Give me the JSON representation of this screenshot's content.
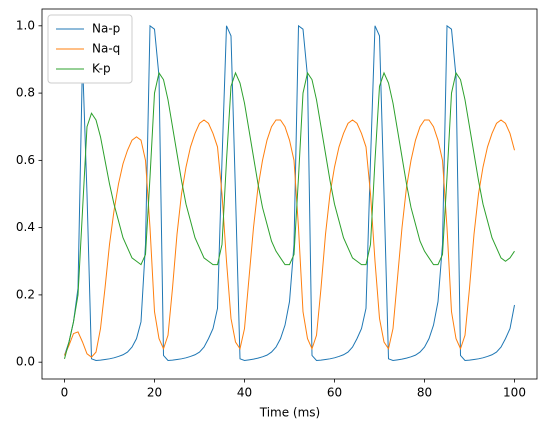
{
  "chart_data": {
    "type": "line",
    "x_label": "Time (ms)",
    "x": [
      0,
      1,
      2,
      3,
      4,
      5,
      6,
      7,
      8,
      9,
      10,
      11,
      12,
      13,
      14,
      15,
      16,
      17,
      18,
      19,
      20,
      21,
      22,
      23,
      24,
      25,
      26,
      27,
      28,
      29,
      30,
      31,
      32,
      33,
      34,
      35,
      36,
      37,
      38,
      39,
      40,
      41,
      42,
      43,
      44,
      45,
      46,
      47,
      48,
      49,
      50,
      51,
      52,
      53,
      54,
      55,
      56,
      57,
      58,
      59,
      60,
      61,
      62,
      63,
      64,
      65,
      66,
      67,
      68,
      69,
      70,
      71,
      72,
      73,
      74,
      75,
      76,
      77,
      78,
      79,
      80,
      81,
      82,
      83,
      84,
      85,
      86,
      87,
      88,
      89,
      90,
      91,
      92,
      93,
      94,
      95,
      96,
      97,
      98,
      99,
      100
    ],
    "series": [
      {
        "name": "Na-p",
        "color": "#1f77b4",
        "values": [
          0.02,
          0.06,
          0.12,
          0.22,
          0.9,
          0.5,
          0.01,
          0.005,
          0.006,
          0.008,
          0.01,
          0.013,
          0.017,
          0.022,
          0.03,
          0.045,
          0.07,
          0.12,
          0.35,
          1.0,
          0.99,
          0.85,
          0.02,
          0.005,
          0.006,
          0.008,
          0.01,
          0.013,
          0.017,
          0.022,
          0.03,
          0.045,
          0.07,
          0.1,
          0.16,
          0.6,
          1.0,
          0.97,
          0.5,
          0.01,
          0.005,
          0.007,
          0.009,
          0.012,
          0.016,
          0.021,
          0.03,
          0.045,
          0.07,
          0.11,
          0.18,
          0.35,
          1.0,
          0.99,
          0.85,
          0.02,
          0.005,
          0.006,
          0.008,
          0.01,
          0.013,
          0.017,
          0.022,
          0.03,
          0.045,
          0.07,
          0.1,
          0.16,
          0.6,
          1.0,
          0.97,
          0.5,
          0.01,
          0.005,
          0.007,
          0.009,
          0.012,
          0.016,
          0.021,
          0.03,
          0.045,
          0.07,
          0.11,
          0.18,
          0.35,
          1.0,
          0.99,
          0.85,
          0.02,
          0.005,
          0.006,
          0.008,
          0.01,
          0.013,
          0.017,
          0.022,
          0.03,
          0.045,
          0.07,
          0.1,
          0.17
        ]
      },
      {
        "name": "Na-q",
        "color": "#ff7f0e",
        "values": [
          0.02,
          0.05,
          0.085,
          0.09,
          0.06,
          0.025,
          0.015,
          0.03,
          0.1,
          0.22,
          0.35,
          0.45,
          0.53,
          0.59,
          0.63,
          0.66,
          0.67,
          0.66,
          0.6,
          0.4,
          0.15,
          0.07,
          0.04,
          0.08,
          0.22,
          0.38,
          0.5,
          0.58,
          0.64,
          0.68,
          0.71,
          0.72,
          0.71,
          0.68,
          0.64,
          0.5,
          0.3,
          0.13,
          0.06,
          0.04,
          0.1,
          0.25,
          0.4,
          0.52,
          0.6,
          0.66,
          0.7,
          0.72,
          0.72,
          0.7,
          0.66,
          0.6,
          0.4,
          0.15,
          0.07,
          0.04,
          0.08,
          0.22,
          0.38,
          0.5,
          0.58,
          0.64,
          0.68,
          0.71,
          0.72,
          0.71,
          0.68,
          0.64,
          0.5,
          0.3,
          0.13,
          0.06,
          0.04,
          0.1,
          0.25,
          0.4,
          0.52,
          0.6,
          0.66,
          0.7,
          0.72,
          0.72,
          0.7,
          0.66,
          0.6,
          0.4,
          0.15,
          0.07,
          0.04,
          0.08,
          0.22,
          0.38,
          0.5,
          0.58,
          0.64,
          0.68,
          0.71,
          0.72,
          0.71,
          0.68,
          0.63
        ]
      },
      {
        "name": "K-p",
        "color": "#2ca02c",
        "values": [
          0.01,
          0.06,
          0.12,
          0.2,
          0.45,
          0.7,
          0.74,
          0.72,
          0.67,
          0.6,
          0.53,
          0.47,
          0.42,
          0.37,
          0.34,
          0.31,
          0.3,
          0.29,
          0.32,
          0.55,
          0.8,
          0.86,
          0.84,
          0.78,
          0.7,
          0.62,
          0.54,
          0.47,
          0.42,
          0.37,
          0.34,
          0.31,
          0.3,
          0.29,
          0.29,
          0.35,
          0.6,
          0.82,
          0.86,
          0.83,
          0.77,
          0.69,
          0.61,
          0.53,
          0.46,
          0.41,
          0.36,
          0.33,
          0.31,
          0.29,
          0.29,
          0.32,
          0.55,
          0.8,
          0.86,
          0.84,
          0.78,
          0.7,
          0.62,
          0.54,
          0.47,
          0.42,
          0.37,
          0.34,
          0.31,
          0.3,
          0.29,
          0.29,
          0.35,
          0.6,
          0.82,
          0.86,
          0.83,
          0.77,
          0.69,
          0.61,
          0.53,
          0.46,
          0.41,
          0.36,
          0.33,
          0.31,
          0.29,
          0.29,
          0.32,
          0.55,
          0.8,
          0.86,
          0.84,
          0.78,
          0.7,
          0.62,
          0.54,
          0.47,
          0.42,
          0.37,
          0.34,
          0.31,
          0.3,
          0.31,
          0.33
        ]
      }
    ],
    "xlim": [
      -5,
      105
    ],
    "xticks": [
      0,
      20,
      40,
      60,
      80,
      100
    ],
    "ylim": [
      -0.05,
      1.05
    ],
    "yticks": [
      {
        "value": 0,
        "label": "0.0"
      },
      {
        "value": 0.2,
        "label": "0.2"
      },
      {
        "value": 0.4,
        "label": "0.4"
      },
      {
        "value": 0.6,
        "label": "0.6"
      },
      {
        "value": 0.8,
        "label": "0.8"
      },
      {
        "value": 1,
        "label": "1.0"
      }
    ],
    "grid": false,
    "legend": "upper left"
  }
}
